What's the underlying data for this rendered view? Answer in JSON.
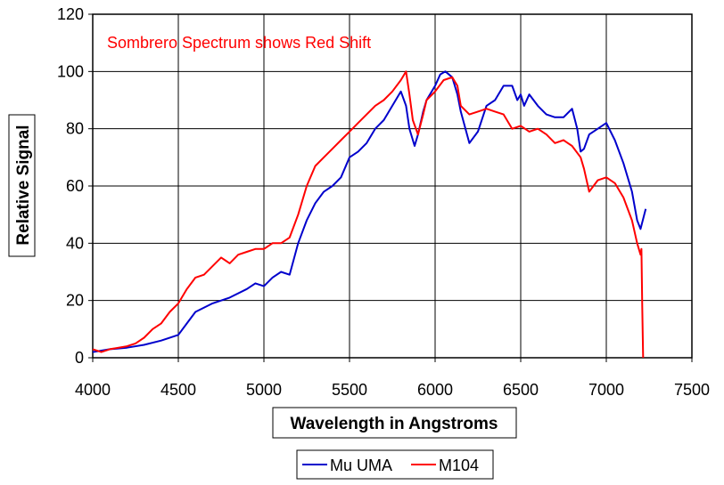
{
  "chart_data": {
    "type": "line",
    "title": "",
    "annotation": "Sombrero Spectrum shows Red Shift",
    "xlabel": "Wavelength in Angstroms",
    "ylabel": "Relative Signal",
    "xlim": [
      4000,
      7500
    ],
    "ylim": [
      0,
      120
    ],
    "x_ticks": [
      4000,
      4500,
      5000,
      5500,
      6000,
      6500,
      7000,
      7500
    ],
    "y_ticks": [
      0,
      20,
      40,
      60,
      80,
      100,
      120
    ],
    "grid": true,
    "legend_position": "bottom",
    "series": [
      {
        "name": "Mu UMA",
        "color": "#0000cc",
        "x": [
          4000,
          4100,
          4200,
          4300,
          4400,
          4500,
          4550,
          4600,
          4700,
          4750,
          4800,
          4900,
          4950,
          5000,
          5050,
          5100,
          5150,
          5200,
          5250,
          5300,
          5350,
          5400,
          5450,
          5500,
          5550,
          5600,
          5650,
          5700,
          5750,
          5800,
          5830,
          5850,
          5880,
          5900,
          5930,
          5950,
          6000,
          6030,
          6060,
          6100,
          6130,
          6150,
          6200,
          6250,
          6300,
          6350,
          6400,
          6450,
          6480,
          6500,
          6520,
          6550,
          6600,
          6650,
          6700,
          6750,
          6800,
          6830,
          6850,
          6870,
          6900,
          6950,
          7000,
          7050,
          7100,
          7150,
          7180,
          7200,
          7230
        ],
        "values": [
          2,
          3,
          3.5,
          4.5,
          6,
          8,
          12,
          16,
          19,
          20,
          21,
          24,
          26,
          25,
          28,
          30,
          29,
          40,
          48,
          54,
          58,
          60,
          63,
          70,
          72,
          75,
          80,
          83,
          88,
          93,
          88,
          80,
          74,
          78,
          86,
          90,
          95,
          99,
          100,
          98,
          92,
          86,
          75,
          79,
          88,
          90,
          95,
          95,
          90,
          92,
          88,
          92,
          88,
          85,
          84,
          84,
          87,
          80,
          72,
          73,
          78,
          80,
          82,
          76,
          68,
          58,
          48,
          45,
          52
        ]
      },
      {
        "name": "M104",
        "color": "#ff0000",
        "x": [
          4000,
          4050,
          4100,
          4200,
          4250,
          4300,
          4350,
          4400,
          4450,
          4500,
          4550,
          4600,
          4650,
          4700,
          4750,
          4800,
          4850,
          4900,
          4950,
          5000,
          5050,
          5100,
          5150,
          5200,
          5250,
          5300,
          5350,
          5400,
          5450,
          5500,
          5550,
          5600,
          5650,
          5700,
          5750,
          5800,
          5830,
          5850,
          5870,
          5900,
          5930,
          5950,
          6000,
          6050,
          6100,
          6130,
          6150,
          6200,
          6250,
          6300,
          6350,
          6400,
          6450,
          6500,
          6550,
          6600,
          6650,
          6700,
          6750,
          6800,
          6850,
          6870,
          6900,
          6950,
          7000,
          7050,
          7100,
          7150,
          7180,
          7200,
          7205,
          7210,
          7215
        ],
        "values": [
          3,
          2,
          3,
          4,
          5,
          7,
          10,
          12,
          16,
          19,
          24,
          28,
          29,
          32,
          35,
          33,
          36,
          37,
          38,
          38,
          40,
          40,
          42,
          50,
          60,
          67,
          70,
          73,
          76,
          79,
          82,
          85,
          88,
          90,
          93,
          97,
          100,
          92,
          83,
          78,
          85,
          90,
          93,
          97,
          98,
          95,
          88,
          85,
          86,
          87,
          86,
          85,
          80,
          81,
          79,
          80,
          78,
          75,
          76,
          74,
          70,
          66,
          58,
          62,
          63,
          61,
          56,
          48,
          40,
          36,
          38,
          18,
          0
        ]
      }
    ]
  }
}
